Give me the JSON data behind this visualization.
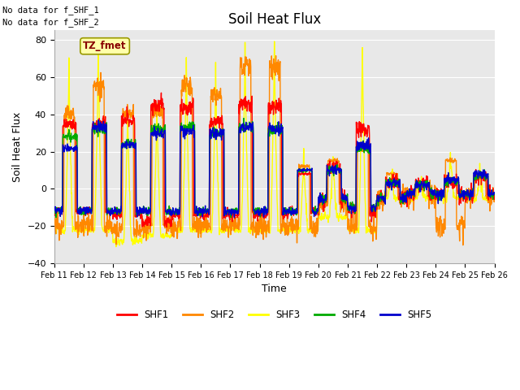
{
  "title": "Soil Heat Flux",
  "ylabel": "Soil Heat Flux",
  "xlabel": "Time",
  "ylim": [
    -40,
    85
  ],
  "yticks": [
    -40,
    -20,
    0,
    20,
    40,
    60,
    80
  ],
  "xlim": [
    0,
    360
  ],
  "xtick_positions": [
    0,
    24,
    48,
    72,
    96,
    120,
    144,
    168,
    192,
    216,
    240,
    264,
    288,
    312,
    336,
    360
  ],
  "xtick_labels": [
    "Feb 11",
    "Feb 12",
    "Feb 13",
    "Feb 14",
    "Feb 15",
    "Feb 16",
    "Feb 17",
    "Feb 18",
    "Feb 19",
    "Feb 20",
    "Feb 21",
    "Feb 22",
    "Feb 23",
    "Feb 24",
    "Feb 25",
    "Feb 26"
  ],
  "colors": {
    "SHF1": "#ff0000",
    "SHF2": "#ff8800",
    "SHF3": "#ffff00",
    "SHF4": "#00aa00",
    "SHF5": "#0000cc"
  },
  "annotation_text1": "No data for f_SHF_1",
  "annotation_text2": "No data for f_SHF_2",
  "box_text": "TZ_fmet",
  "box_bg": "#ffffaa",
  "box_edge": "#999900",
  "box_text_color": "#880000",
  "plot_bg": "#e8e8e8",
  "fig_bg": "#ffffff",
  "linewidth": 1.0,
  "grid_color": "#ffffff",
  "title_fontsize": 12,
  "label_fontsize": 9,
  "tick_fontsize": 7
}
